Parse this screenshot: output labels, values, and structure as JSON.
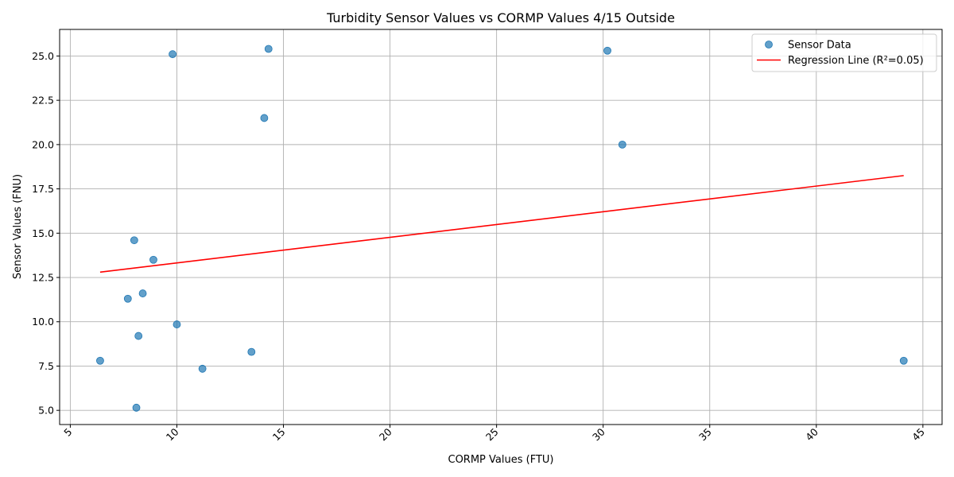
{
  "chart_data": {
    "type": "scatter",
    "title": "Turbidity Sensor Values vs CORMP Values 4/15 Outside",
    "xlabel": "CORMP Values (FTU)",
    "ylabel": "Sensor Values (FNU)",
    "xlim": [
      4.5,
      45.9
    ],
    "ylim": [
      4.2,
      26.5
    ],
    "xticks": [
      5,
      10,
      15,
      20,
      25,
      30,
      35,
      40,
      45
    ],
    "yticks": [
      5.0,
      7.5,
      10.0,
      12.5,
      15.0,
      17.5,
      20.0,
      22.5,
      25.0
    ],
    "xtick_labels": [
      "5",
      "10",
      "15",
      "20",
      "25",
      "30",
      "35",
      "40",
      "45"
    ],
    "ytick_labels": [
      "5.0",
      "7.5",
      "10.0",
      "12.5",
      "15.0",
      "17.5",
      "20.0",
      "22.5",
      "25.0"
    ],
    "grid": true,
    "legend_position": "top-right",
    "series": [
      {
        "name": "Sensor Data",
        "kind": "scatter",
        "color": "#1f77b4",
        "x": [
          9.8,
          14.3,
          30.2,
          14.1,
          30.9,
          8.0,
          8.9,
          8.4,
          7.7,
          10.0,
          8.2,
          13.5,
          6.4,
          11.2,
          8.1,
          44.1
        ],
        "y": [
          25.1,
          25.4,
          25.3,
          21.5,
          20.0,
          14.6,
          13.5,
          11.6,
          11.3,
          9.85,
          9.2,
          8.3,
          7.8,
          7.35,
          5.15,
          7.8
        ]
      },
      {
        "name": "Regression Line (R²=0.05)",
        "kind": "line",
        "color": "#ff0000",
        "x": [
          6.4,
          44.1
        ],
        "y": [
          12.8,
          18.25
        ]
      }
    ]
  }
}
